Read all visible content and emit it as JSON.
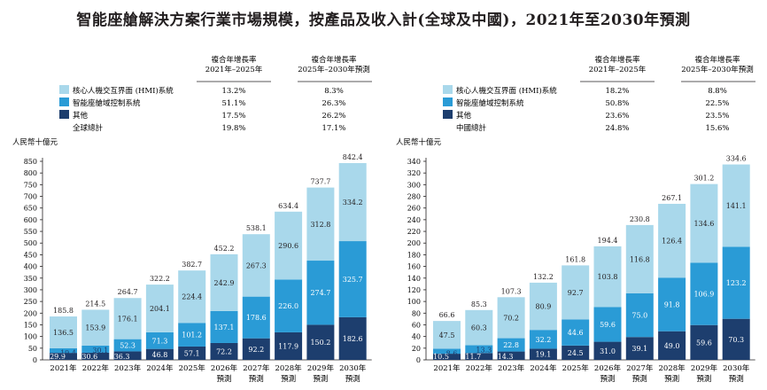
{
  "title": "智能座艙解決方案行業市場規模，按產品及收入計(全球及中國)，2021年至2030年預測",
  "colors": {
    "hmi": "#a9d8eb",
    "domain": "#2a9bd6",
    "other": "#1d3e6e"
  },
  "chart_data": [
    {
      "type": "bar",
      "stacked": true,
      "panel": "global",
      "ylabel": "人民幣十億元",
      "ylim": [
        0,
        850
      ],
      "yticks": [
        0,
        50,
        100,
        150,
        200,
        250,
        300,
        350,
        400,
        450,
        500,
        550,
        600,
        650,
        700,
        750,
        800,
        850
      ],
      "categories": [
        {
          "line1": "2021年",
          "line2": ""
        },
        {
          "line1": "2022年",
          "line2": ""
        },
        {
          "line1": "2023年",
          "line2": ""
        },
        {
          "line1": "2024年",
          "line2": ""
        },
        {
          "line1": "2025年",
          "line2": ""
        },
        {
          "line1": "2026年",
          "line2": "預測"
        },
        {
          "line1": "2027年",
          "line2": "預測"
        },
        {
          "line1": "2028年",
          "line2": "預測"
        },
        {
          "line1": "2029年",
          "line2": "預測"
        },
        {
          "line1": "2030年",
          "line2": "預測"
        }
      ],
      "series": [
        {
          "name": "其他",
          "key": "other",
          "values": [
            29.9,
            30.6,
            36.3,
            46.8,
            57.1,
            72.2,
            92.2,
            117.9,
            150.2,
            182.6
          ]
        },
        {
          "name": "智能座艙域控制系統",
          "key": "domain",
          "values": [
            19.4,
            30.1,
            52.3,
            71.3,
            101.2,
            137.1,
            178.6,
            226.0,
            274.7,
            325.7
          ]
        },
        {
          "name": "核心人機交互界面 (HMI)系統",
          "key": "hmi",
          "values": [
            136.5,
            153.9,
            176.1,
            204.1,
            224.4,
            242.9,
            267.3,
            290.6,
            312.8,
            334.2
          ]
        }
      ],
      "totals": [
        185.8,
        214.5,
        264.7,
        322.2,
        382.7,
        452.2,
        538.1,
        634.4,
        737.7,
        842.4
      ],
      "legend": {
        "header1": "複合年增長率\n2021年–2025年",
        "header2": "複合年增長率\n2025年–2030年預測",
        "rows": [
          {
            "key": "hmi",
            "label": "核心人機交互界面 (HMI)系統",
            "c1": "13.2%",
            "c2": "8.3%"
          },
          {
            "key": "domain",
            "label": "智能座艙域控制系統",
            "c1": "51.1%",
            "c2": "26.3%"
          },
          {
            "key": "other",
            "label": "其他",
            "c1": "17.5%",
            "c2": "26.2%"
          },
          {
            "key": "",
            "label": "全球總計",
            "c1": "19.8%",
            "c2": "17.1%"
          }
        ]
      }
    },
    {
      "type": "bar",
      "stacked": true,
      "panel": "china",
      "ylabel": "人民幣十億元",
      "ylim": [
        0,
        340
      ],
      "yticks": [
        0,
        20,
        40,
        60,
        80,
        100,
        120,
        140,
        160,
        180,
        200,
        220,
        240,
        260,
        280,
        300,
        320,
        340
      ],
      "categories": [
        {
          "line1": "2021年",
          "line2": ""
        },
        {
          "line1": "2022年",
          "line2": ""
        },
        {
          "line1": "2023年",
          "line2": ""
        },
        {
          "line1": "2024年",
          "line2": ""
        },
        {
          "line1": "2025年",
          "line2": ""
        },
        {
          "line1": "2026年",
          "line2": "預測"
        },
        {
          "line1": "2027年",
          "line2": "預測"
        },
        {
          "line1": "2028年",
          "line2": "預測"
        },
        {
          "line1": "2029年",
          "line2": "預測"
        },
        {
          "line1": "2030年",
          "line2": "預測"
        }
      ],
      "series": [
        {
          "name": "其他",
          "key": "other",
          "values": [
            10.5,
            11.7,
            14.3,
            19.1,
            24.5,
            31.0,
            39.1,
            49.0,
            59.6,
            70.3
          ]
        },
        {
          "name": "智能座艙域控制系統",
          "key": "domain",
          "values": [
            8.6,
            13.3,
            22.8,
            32.2,
            44.6,
            59.6,
            75.0,
            91.8,
            106.9,
            123.2
          ]
        },
        {
          "name": "核心人機交互界面 (HMI)系統",
          "key": "hmi",
          "values": [
            47.5,
            60.3,
            70.2,
            80.9,
            92.7,
            103.8,
            116.8,
            126.4,
            134.6,
            141.1
          ]
        }
      ],
      "totals": [
        66.6,
        85.3,
        107.3,
        132.2,
        161.8,
        194.4,
        230.8,
        267.1,
        301.2,
        334.6
      ],
      "legend": {
        "header1": "複合年增長率\n2021年–2025年",
        "header2": "複合年增長率\n2025年–2030年預測",
        "rows": [
          {
            "key": "hmi",
            "label": "核心人機交互界面 (HMI)系統",
            "c1": "18.2%",
            "c2": "8.8%"
          },
          {
            "key": "domain",
            "label": "智能座艙域控制系統",
            "c1": "50.8%",
            "c2": "22.5%"
          },
          {
            "key": "other",
            "label": "其他",
            "c1": "23.6%",
            "c2": "23.5%"
          },
          {
            "key": "",
            "label": "中國總計",
            "c1": "24.8%",
            "c2": "15.6%"
          }
        ]
      }
    }
  ]
}
